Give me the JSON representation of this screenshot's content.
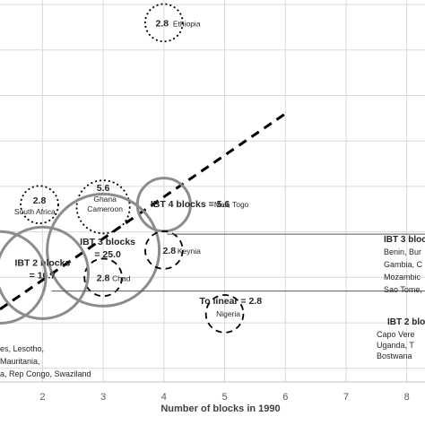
{
  "chart_data": {
    "type": "scatter",
    "title": "",
    "xlabel": "Number of blocks in 1990",
    "ylabel": "",
    "xlim": [
      1.3,
      8.3
    ],
    "ylim": [
      0.7,
      9.1
    ],
    "x_ticks": [
      "2",
      "3",
      "4",
      "5",
      "6",
      "7",
      "8"
    ],
    "grid": true,
    "trend_line": {
      "style": "dashed",
      "from": [
        1.3,
        2.3
      ],
      "to": [
        6,
        6.6
      ]
    },
    "bubbles": [
      {
        "x": 4.0,
        "y": 8.6,
        "r": 2.8,
        "style": "dotted",
        "value_label": "2.8",
        "name_label": "Ethiopia"
      },
      {
        "x": 1.95,
        "y": 4.6,
        "r": 2.8,
        "style": "dotted",
        "value_label": "2.8",
        "name_label": "South Africa,"
      },
      {
        "x": 3.0,
        "y": 4.55,
        "r": 5.6,
        "style": "dotted",
        "value_label": "5.6",
        "name_label": "Ghana\nCameroon"
      },
      {
        "x": 4.0,
        "y": 4.6,
        "r": 5.6,
        "style": "solid",
        "value_label": "IBT 4 blocks = 5.6",
        "name_label": "Mali, Togo"
      },
      {
        "x": 3.0,
        "y": 3.6,
        "r": 25.0,
        "style": "solid",
        "value_label": "IBT 3 blocks\n= 25.0",
        "name_label": ""
      },
      {
        "x": 4.0,
        "y": 3.6,
        "r": 2.8,
        "style": "dashed",
        "value_label": "2.8",
        "name_label": "Keynia"
      },
      {
        "x": 3.0,
        "y": 3.0,
        "r": 2.8,
        "style": "dashed",
        "value_label": "2.8",
        "name_label": "Chad"
      },
      {
        "x": 2.0,
        "y": 3.1,
        "r": 16.7,
        "style": "solid",
        "value_label": "IBT 2 blocks\n= 16.7",
        "name_label": ""
      },
      {
        "x": 5.0,
        "y": 2.2,
        "r": 2.8,
        "style": "dashed",
        "value_label": "To linear = 2.8",
        "name_label": "Nigeria"
      },
      {
        "x": 1.3,
        "y": 3.0,
        "r": 16.7,
        "style": "solid",
        "value_label": "",
        "name_label": ""
      }
    ],
    "annotations": [
      {
        "title": "IBT 3 block",
        "lines": [
          "Benin, Bur",
          "Gambia, C",
          "Mozambic",
          "Sao Tome,"
        ]
      },
      {
        "title": "IBT 2 blo",
        "lines": [
          "Capo Vere",
          "Uganda, T",
          "Bostwana"
        ]
      }
    ],
    "left_text": [
      "es, Lesotho,",
      "Mauritania,",
      "a, Rep Congo, Swaziland"
    ]
  }
}
